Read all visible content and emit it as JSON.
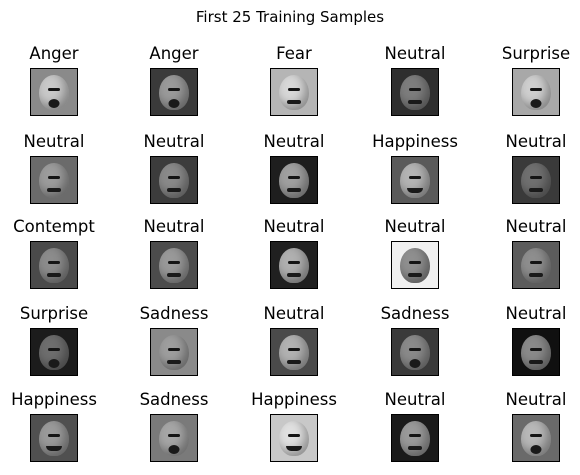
{
  "title": "First 25 Training Samples",
  "samples": [
    {
      "label": "Anger",
      "bg": "#8a8a8a",
      "face": "#c9c9c9",
      "mouth": "open"
    },
    {
      "label": "Anger",
      "bg": "#3a3a3a",
      "face": "#9a9a9a",
      "mouth": "open"
    },
    {
      "label": "Fear",
      "bg": "#b5b5b5",
      "face": "#d8d8d8",
      "mouth": "flat"
    },
    {
      "label": "Neutral",
      "bg": "#2e2e2e",
      "face": "#7d7d7d",
      "mouth": "flat"
    },
    {
      "label": "Surprise",
      "bg": "#a8a8a8",
      "face": "#cfcfcf",
      "mouth": "open"
    },
    {
      "label": "Neutral",
      "bg": "#6b6b6b",
      "face": "#9c9c9c",
      "mouth": "flat"
    },
    {
      "label": "Neutral",
      "bg": "#3c3c3c",
      "face": "#8a8a8a",
      "mouth": "flat"
    },
    {
      "label": "Neutral",
      "bg": "#1e1e1e",
      "face": "#a0a0a0",
      "mouth": "flat"
    },
    {
      "label": "Happiness",
      "bg": "#5a5a5a",
      "face": "#b4b4b4",
      "mouth": "smile"
    },
    {
      "label": "Neutral",
      "bg": "#3a3a3a",
      "face": "#707070",
      "mouth": "flat"
    },
    {
      "label": "Contempt",
      "bg": "#4a4a4a",
      "face": "#8c8c8c",
      "mouth": "flat"
    },
    {
      "label": "Neutral",
      "bg": "#4c4c4c",
      "face": "#999999",
      "mouth": "flat"
    },
    {
      "label": "Neutral",
      "bg": "#202020",
      "face": "#b0b0b0",
      "mouth": "flat"
    },
    {
      "label": "Neutral",
      "bg": "#f0f0f0",
      "face": "#8f8f8f",
      "mouth": "flat"
    },
    {
      "label": "Neutral",
      "bg": "#5c5c5c",
      "face": "#8e8e8e",
      "mouth": "flat"
    },
    {
      "label": "Surprise",
      "bg": "#1c1c1c",
      "face": "#6e6e6e",
      "mouth": "open"
    },
    {
      "label": "Sadness",
      "bg": "#8a8a8a",
      "face": "#9e9e9e",
      "mouth": "flat"
    },
    {
      "label": "Neutral",
      "bg": "#4a4a4a",
      "face": "#b2b2b2",
      "mouth": "flat"
    },
    {
      "label": "Sadness",
      "bg": "#3a3a3a",
      "face": "#8a8a8a",
      "mouth": "open"
    },
    {
      "label": "Neutral",
      "bg": "#101010",
      "face": "#8a8a8a",
      "mouth": "flat"
    },
    {
      "label": "Happiness",
      "bg": "#505050",
      "face": "#9a9a9a",
      "mouth": "smile"
    },
    {
      "label": "Sadness",
      "bg": "#7a7a7a",
      "face": "#a6a6a6",
      "mouth": "open"
    },
    {
      "label": "Happiness",
      "bg": "#c8c8c8",
      "face": "#e0e0e0",
      "mouth": "smile"
    },
    {
      "label": "Neutral",
      "bg": "#1a1a1a",
      "face": "#9a9a9a",
      "mouth": "flat"
    },
    {
      "label": "Neutral",
      "bg": "#6a6a6a",
      "face": "#b8b8b8",
      "mouth": "open"
    }
  ]
}
